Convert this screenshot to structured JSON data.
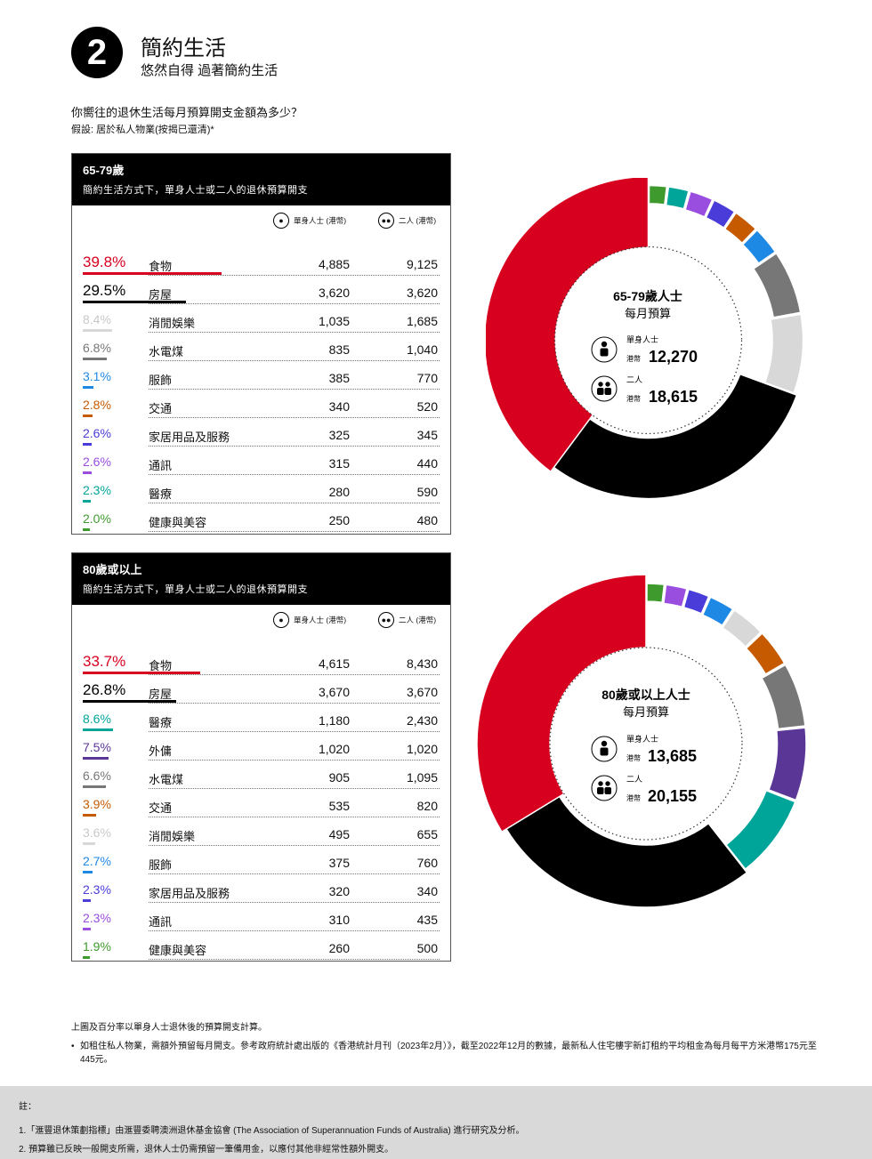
{
  "header": {
    "number": "2",
    "title": "簡約生活",
    "subtitle": "悠然自得 過著簡約生活"
  },
  "question": "你嚮往的退休生活每月預算開支金額為多少？",
  "assumption": "假設: 居於私人物業(按揭已還清)*",
  "columns": {
    "single": "單身人士 (港幣)",
    "couple": "二人 (港幣)"
  },
  "icons": {
    "single": "person-icon",
    "couple": "two-persons-icon"
  },
  "panels": [
    {
      "title": "65-79歲",
      "subtitle": "簡約生活方式下，單身人士或二人的退休預算開支",
      "center_title": "65-79歲人士",
      "center_sub": "每月預算",
      "single_label": "單身人士",
      "couple_label": "二人",
      "currency": "港幣",
      "single_total": "12,270",
      "couple_total": "18,615"
    },
    {
      "title": "80歲或以上",
      "subtitle": "簡約生活方式下，單身人士或二人的退休預算開支",
      "center_title": "80歲或以上人士",
      "center_sub": "每月預算",
      "single_label": "單身人士",
      "couple_label": "二人",
      "currency": "港幣",
      "single_total": "13,685",
      "couple_total": "20,155"
    }
  ],
  "chart_data": [
    {
      "type": "table",
      "title": "65-79歲",
      "columns": [
        "百分率",
        "類別",
        "單身人士 (港幣)",
        "二人 (港幣)"
      ],
      "rows": [
        {
          "pct": "39.8%",
          "category": "食物",
          "single": "4,885",
          "couple": "9,125",
          "color": "#d7001e"
        },
        {
          "pct": "29.5%",
          "category": "房屋",
          "single": "3,620",
          "couple": "3,620",
          "color": "#000000"
        },
        {
          "pct": "8.4%",
          "category": "消閒娛樂",
          "single": "1,035",
          "couple": "1,685",
          "color": "#d8d8d8"
        },
        {
          "pct": "6.8%",
          "category": "水電煤",
          "single": "835",
          "couple": "1,040",
          "color": "#777777"
        },
        {
          "pct": "3.1%",
          "category": "服飾",
          "single": "385",
          "couple": "770",
          "color": "#1e88e5"
        },
        {
          "pct": "2.8%",
          "category": "交通",
          "single": "340",
          "couple": "520",
          "color": "#c55a00"
        },
        {
          "pct": "2.6%",
          "category": "家居用品及服務",
          "single": "325",
          "couple": "345",
          "color": "#4a3cd8"
        },
        {
          "pct": "2.6%",
          "category": "通訊",
          "single": "315",
          "couple": "440",
          "color": "#9a4ee0"
        },
        {
          "pct": "2.3%",
          "category": "醫療",
          "single": "280",
          "couple": "590",
          "color": "#00a59a"
        },
        {
          "pct": "2.0%",
          "category": "健康與美容",
          "single": "250",
          "couple": "480",
          "color": "#3f9a2e"
        }
      ]
    },
    {
      "type": "pie",
      "title": "",
      "categories": [
        "健康與美容",
        "醫療",
        "通訊",
        "家居用品及服務",
        "交通",
        "服飾",
        "水電煤",
        "消閒娛樂",
        "房屋",
        "食物"
      ],
      "values": [
        2.0,
        2.3,
        2.6,
        2.6,
        2.8,
        3.1,
        6.8,
        8.4,
        29.5,
        39.8
      ],
      "colors": [
        "#3f9a2e",
        "#00a59a",
        "#9a4ee0",
        "#4a3cd8",
        "#c55a00",
        "#1e88e5",
        "#777777",
        "#d8d8d8",
        "#000000",
        "#d7001e"
      ]
    },
    {
      "type": "table",
      "title": "80歲或以上",
      "columns": [
        "百分率",
        "類別",
        "單身人士 (港幣)",
        "二人 (港幣)"
      ],
      "rows": [
        {
          "pct": "33.7%",
          "category": "食物",
          "single": "4,615",
          "couple": "8,430",
          "color": "#d7001e"
        },
        {
          "pct": "26.8%",
          "category": "房屋",
          "single": "3,670",
          "couple": "3,670",
          "color": "#000000"
        },
        {
          "pct": "8.6%",
          "category": "醫療",
          "single": "1,180",
          "couple": "2,430",
          "color": "#00a59a"
        },
        {
          "pct": "7.5%",
          "category": "外傭",
          "single": "1,020",
          "couple": "1,020",
          "color": "#5a3696"
        },
        {
          "pct": "6.6%",
          "category": "水電煤",
          "single": "905",
          "couple": "1,095",
          "color": "#777777"
        },
        {
          "pct": "3.9%",
          "category": "交通",
          "single": "535",
          "couple": "820",
          "color": "#c55a00"
        },
        {
          "pct": "3.6%",
          "category": "消閒娛樂",
          "single": "495",
          "couple": "655",
          "color": "#d8d8d8"
        },
        {
          "pct": "2.7%",
          "category": "服飾",
          "single": "375",
          "couple": "760",
          "color": "#1e88e5"
        },
        {
          "pct": "2.3%",
          "category": "家居用品及服務",
          "single": "320",
          "couple": "340",
          "color": "#4a3cd8"
        },
        {
          "pct": "2.3%",
          "category": "通訊",
          "single": "310",
          "couple": "435",
          "color": "#9a4ee0"
        },
        {
          "pct": "1.9%",
          "category": "健康與美容",
          "single": "260",
          "couple": "500",
          "color": "#3f9a2e"
        }
      ]
    },
    {
      "type": "pie",
      "title": "",
      "categories": [
        "健康與美容",
        "通訊",
        "家居用品及服務",
        "服飾",
        "消閒娛樂",
        "交通",
        "水電煤",
        "外傭",
        "醫療",
        "房屋",
        "食物"
      ],
      "values": [
        1.9,
        2.3,
        2.3,
        2.7,
        3.6,
        3.9,
        6.6,
        7.5,
        8.6,
        26.8,
        33.7
      ],
      "colors": [
        "#3f9a2e",
        "#9a4ee0",
        "#4a3cd8",
        "#1e88e5",
        "#d8d8d8",
        "#c55a00",
        "#777777",
        "#5a3696",
        "#00a59a",
        "#000000",
        "#d7001e"
      ]
    }
  ],
  "notes": {
    "top": "上圖及百分率以單身人士退休後的預算開支計算。",
    "bullet": "•",
    "bullet_text": "如租住私人物業，需額外預留每月開支。參考政府統計處出版的《香港統計月刊（2023年2月）》，截至2022年12月的數據，最新私人住宅樓宇新訂租約平均租金為每月每平方米港幣175元至445元。"
  },
  "footer": {
    "label": "註：",
    "lines": [
      "1.「滙豐退休策劃指標」由滙豐委聘澳洲退休基金協會 (The Association of Superannuation Funds of Australia) 進行研究及分析。",
      "2. 預算雖已反映一般開支所需，退休人士仍需預留一筆備用金，以應付其他非經常性額外開支。"
    ]
  }
}
